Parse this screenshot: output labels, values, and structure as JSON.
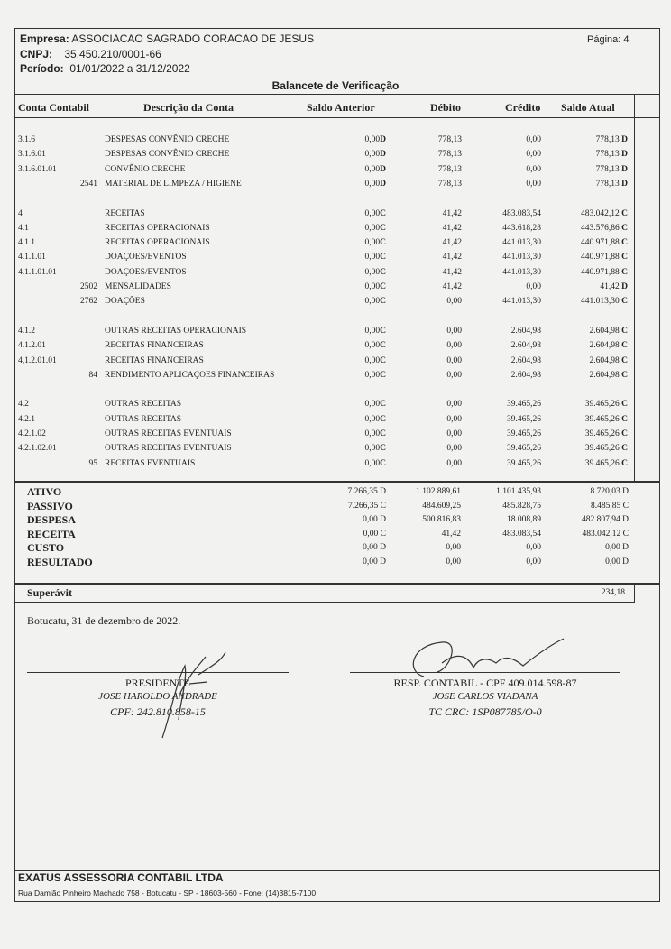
{
  "header": {
    "empresa_label": "Empresa:",
    "empresa": "ASSOCIACAO SAGRADO CORACAO DE JESUS",
    "cnpj_label": "CNPJ:",
    "cnpj": "35.450.210/0001-66",
    "periodo_label": "Período:",
    "periodo": "01/01/2022 a 31/12/2022",
    "pagina_label": "Página:",
    "pagina": "4",
    "title": "Balancete de Verificação"
  },
  "columns": [
    "Conta Contabil",
    "Descrição da Conta",
    "Saldo Anterior",
    "Débito",
    "Crédito",
    "Saldo Atual"
  ],
  "rows": [
    {
      "conta": "3.1.6",
      "code": "",
      "desc": "DESPESAS CONVÊNIO CRECHE",
      "ant": "0,00",
      "ant_dc": "D",
      "deb": "778,13",
      "cred": "0,00",
      "atual": "778,13",
      "atual_dc": "D"
    },
    {
      "conta": "3.1.6.01",
      "code": "",
      "desc": "DESPESAS CONVÊNIO CRECHE",
      "ant": "0,00",
      "ant_dc": "D",
      "deb": "778,13",
      "cred": "0,00",
      "atual": "778,13",
      "atual_dc": "D"
    },
    {
      "conta": "3.1.6.01.01",
      "code": "",
      "desc": "CONVÊNIO CRECHE",
      "ant": "0,00",
      "ant_dc": "D",
      "deb": "778,13",
      "cred": "0,00",
      "atual": "778,13",
      "atual_dc": "D"
    },
    {
      "conta": "",
      "code": "2541",
      "desc": "MATERIAL DE LIMPEZA / HIGIENE",
      "ant": "0,00",
      "ant_dc": "D",
      "deb": "778,13",
      "cred": "0,00",
      "atual": "778,13",
      "atual_dc": "D"
    },
    null,
    {
      "conta": "4",
      "code": "",
      "desc": "RECEITAS",
      "ant": "0,00",
      "ant_dc": "C",
      "deb": "41,42",
      "cred": "483.083,54",
      "atual": "483.042,12",
      "atual_dc": "C"
    },
    {
      "conta": "4.1",
      "code": "",
      "desc": "RECEITAS OPERACIONAIS",
      "ant": "0,00",
      "ant_dc": "C",
      "deb": "41,42",
      "cred": "443.618,28",
      "atual": "443.576,86",
      "atual_dc": "C"
    },
    {
      "conta": "4.1.1",
      "code": "",
      "desc": "RECEITAS OPERACIONAIS",
      "ant": "0,00",
      "ant_dc": "C",
      "deb": "41,42",
      "cred": "441.013,30",
      "atual": "440.971,88",
      "atual_dc": "C"
    },
    {
      "conta": "4.1.1.01",
      "code": "",
      "desc": "DOAÇOES/EVENTOS",
      "ant": "0,00",
      "ant_dc": "C",
      "deb": "41,42",
      "cred": "441.013,30",
      "atual": "440.971,88",
      "atual_dc": "C"
    },
    {
      "conta": "4.1.1.01.01",
      "code": "",
      "desc": "DOAÇOES/EVENTOS",
      "ant": "0,00",
      "ant_dc": "C",
      "deb": "41,42",
      "cred": "441.013,30",
      "atual": "440.971,88",
      "atual_dc": "C"
    },
    {
      "conta": "",
      "code": "2502",
      "desc": "MENSALIDADES",
      "ant": "0,00",
      "ant_dc": "C",
      "deb": "41,42",
      "cred": "0,00",
      "atual": "41,42",
      "atual_dc": "D"
    },
    {
      "conta": "",
      "code": "2762",
      "desc": "DOAÇÕES",
      "ant": "0,00",
      "ant_dc": "C",
      "deb": "0,00",
      "cred": "441.013,30",
      "atual": "441.013,30",
      "atual_dc": "C"
    },
    null,
    {
      "conta": "4.1.2",
      "code": "",
      "desc": "OUTRAS RECEITAS OPERACIONAIS",
      "ant": "0,00",
      "ant_dc": "C",
      "deb": "0,00",
      "cred": "2.604,98",
      "atual": "2.604,98",
      "atual_dc": "C"
    },
    {
      "conta": "4.1.2.01",
      "code": "",
      "desc": "RECEITAS FINANCEIRAS",
      "ant": "0,00",
      "ant_dc": "C",
      "deb": "0,00",
      "cred": "2.604,98",
      "atual": "2.604,98",
      "atual_dc": "C"
    },
    {
      "conta": "4,1.2.01.01",
      "code": "",
      "desc": "RECEITAS FINANCEIRAS",
      "ant": "0,00",
      "ant_dc": "C",
      "deb": "0,00",
      "cred": "2.604,98",
      "atual": "2.604,98",
      "atual_dc": "C"
    },
    {
      "conta": "",
      "code": "84",
      "desc": "RENDIMENTO APLICAÇOES FINANCEIRAS",
      "ant": "0,00",
      "ant_dc": "C",
      "deb": "0,00",
      "cred": "2.604,98",
      "atual": "2.604,98",
      "atual_dc": "C"
    },
    null,
    {
      "conta": "4.2",
      "code": "",
      "desc": "OUTRAS RECEITAS",
      "ant": "0,00",
      "ant_dc": "C",
      "deb": "0,00",
      "cred": "39.465,26",
      "atual": "39.465,26",
      "atual_dc": "C"
    },
    {
      "conta": "4.2.1",
      "code": "",
      "desc": "OUTRAS RECEITAS",
      "ant": "0,00",
      "ant_dc": "C",
      "deb": "0,00",
      "cred": "39.465,26",
      "atual": "39.465,26",
      "atual_dc": "C"
    },
    {
      "conta": "4.2.1.02",
      "code": "",
      "desc": "OUTRAS RECEITAS EVENTUAIS",
      "ant": "0,00",
      "ant_dc": "C",
      "deb": "0,00",
      "cred": "39.465,26",
      "atual": "39.465,26",
      "atual_dc": "C"
    },
    {
      "conta": "4.2.1.02.01",
      "code": "",
      "desc": "OUTRAS RECEITAS EVENTUAIS",
      "ant": "0,00",
      "ant_dc": "C",
      "deb": "0,00",
      "cred": "39.465,26",
      "atual": "39.465,26",
      "atual_dc": "C"
    },
    {
      "conta": "",
      "code": "95",
      "desc": "RECEITAS EVENTUAIS",
      "ant": "0,00",
      "ant_dc": "C",
      "deb": "0,00",
      "cred": "39.465,26",
      "atual": "39.465,26",
      "atual_dc": "C"
    }
  ],
  "summary": [
    {
      "label": "ATIVO",
      "ant": "7.266,35 D",
      "deb": "1.102.889,61",
      "cred": "1.101.435,93",
      "atual": "8.720,03 D"
    },
    {
      "label": "PASSIVO",
      "ant": "7.266,35 C",
      "deb": "484.609,25",
      "cred": "485.828,75",
      "atual": "8.485,85 C"
    },
    {
      "label": "DESPESA",
      "ant": "0,00 D",
      "deb": "500.816,83",
      "cred": "18.008,89",
      "atual": "482.807,94 D"
    },
    {
      "label": "RECEITA",
      "ant": "0,00 C",
      "deb": "41,42",
      "cred": "483.083,54",
      "atual": "483.042,12 C"
    },
    {
      "label": "CUSTO",
      "ant": "0,00 D",
      "deb": "0,00",
      "cred": "0,00",
      "atual": "0,00 D"
    },
    {
      "label": "RESULTADO",
      "ant": "0,00 D",
      "deb": "0,00",
      "cred": "0,00",
      "atual": "0,00 D"
    }
  ],
  "result": {
    "label": "Superávit",
    "value": "234,18"
  },
  "place_date": "Botucatu, 31 de dezembro de 2022.",
  "signatures": {
    "left": {
      "role": "PRESIDENTE",
      "name": "JOSE HAROLDO ANDRADE",
      "doc": "CPF: 242.810.858-15"
    },
    "right": {
      "role": "RESP. CONTABIL - CPF 409.014.598-87",
      "name": "JOSE CARLOS VIADANA",
      "doc": "TC CRC: 1SP087785/O-0"
    }
  },
  "footer": {
    "company": "EXATUS ASSESSORIA CONTABIL LTDA",
    "address": "Rua Damião Pinheiro Machado 758  - Botucatu - SP - 18603-560 - Fone: (14)3815-7100"
  }
}
